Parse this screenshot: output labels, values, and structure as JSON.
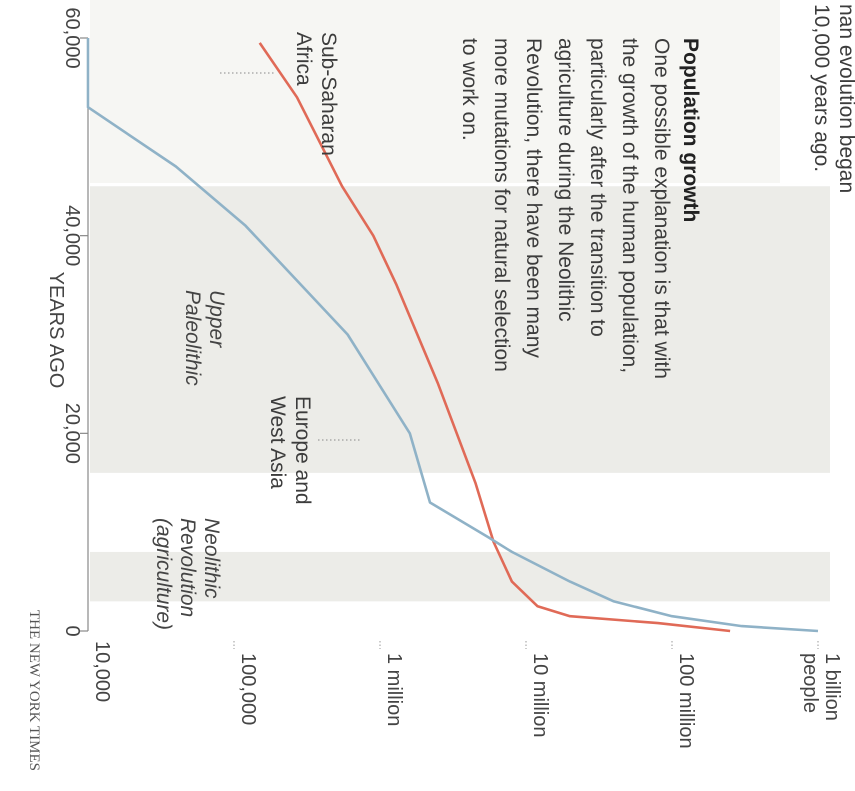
{
  "chart_data": {
    "type": "line",
    "title": "",
    "xlabel": "YEARS AGO",
    "ylabel": "",
    "y_scale": "log",
    "x_ticks": [
      0,
      20000,
      40000,
      60000
    ],
    "x_tick_labels": [
      "0",
      "20,000",
      "40,000",
      "60,000"
    ],
    "y_ticks": [
      10000,
      100000,
      1000000,
      10000000,
      100000000,
      1000000000
    ],
    "y_tick_labels": [
      "10,000",
      "100,000",
      "1 million",
      "10 million",
      "100 million",
      "1 billion people"
    ],
    "series": [
      {
        "name": "Sub-Saharan Africa",
        "color": "#e06a57",
        "points": [
          [
            59500,
            150000
          ],
          [
            54000,
            270000
          ],
          [
            45000,
            550000
          ],
          [
            40000,
            900000
          ],
          [
            35000,
            1300000
          ],
          [
            25000,
            2500000
          ],
          [
            15000,
            4500000
          ],
          [
            9000,
            6000000
          ],
          [
            5000,
            8000000
          ],
          [
            2500,
            12000000
          ],
          [
            1500,
            20000000
          ],
          [
            800,
            80000000
          ],
          [
            0,
            250000000
          ]
        ]
      },
      {
        "name": "Europe and West Asia",
        "color": "#8fb2c7",
        "points": [
          [
            60000,
            10000
          ],
          [
            53000,
            10000
          ],
          [
            47000,
            40000
          ],
          [
            41000,
            120000
          ],
          [
            30000,
            600000
          ],
          [
            20000,
            1600000
          ],
          [
            13000,
            2200000
          ],
          [
            9500,
            5500000
          ],
          [
            8000,
            8000000
          ],
          [
            5000,
            20000000
          ],
          [
            3000,
            40000000
          ],
          [
            1500,
            100000000
          ],
          [
            500,
            300000000
          ],
          [
            0,
            1000000000
          ]
        ]
      }
    ],
    "shaded_periods": [
      {
        "label": [
          "Upper",
          "Paleolithic"
        ],
        "from": 16000,
        "to": 45000
      },
      {
        "label": [
          "Neolithic",
          "Revolution",
          "(agriculture)"
        ],
        "from": 3000,
        "to": 8000
      }
    ],
    "series_labels": [
      {
        "series": 0,
        "lines": [
          "Sub-Saharan",
          "Africa"
        ]
      },
      {
        "series": 1,
        "lines": [
          "Europe and",
          "West Asia"
        ]
      }
    ],
    "annotations": [
      {
        "id": "intro",
        "lines": [
          "nan evolution began",
          "10,000 years ago."
        ]
      },
      {
        "id": "population-growth",
        "heading": "Population growth",
        "lines": [
          "One possible explanation is that with",
          "the growth of the human population,",
          "particularly after the transition to",
          "agriculture during the Neolithic",
          "Revolution, there have been many",
          "more mutations for natural selection",
          "to work on."
        ]
      }
    ]
  },
  "credit": "THE NEW YORK TIMES",
  "colors": {
    "africa_line": "#e06a57",
    "europe_line": "#8fb2c7",
    "shade": "#ecece8",
    "axis": "#888888"
  }
}
